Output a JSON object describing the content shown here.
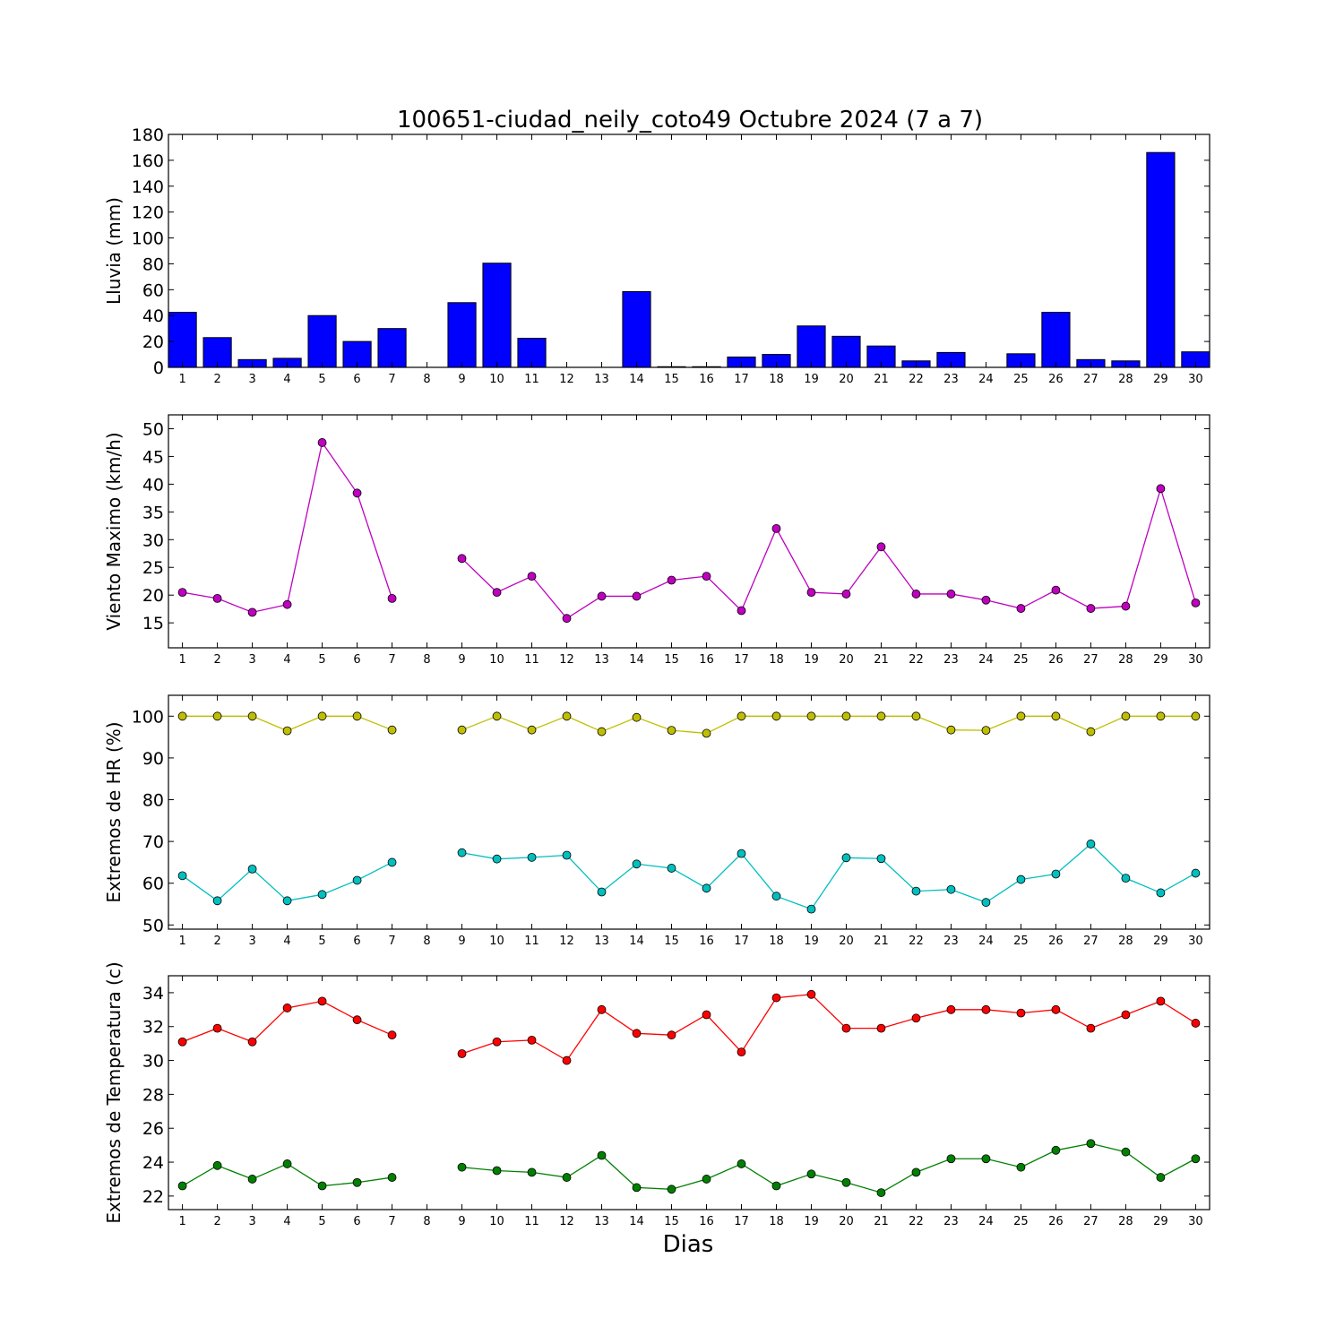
{
  "title": "100651-ciudad_neily_coto49 Octubre 2024  (7 a 7)",
  "xlabel": "Dias",
  "chart_data": [
    {
      "type": "bar",
      "ylabel": "Lluvia (mm)",
      "ylim": [
        0,
        180
      ],
      "yticks": [
        0,
        20,
        40,
        60,
        80,
        100,
        120,
        140,
        160,
        180
      ],
      "x": [
        1,
        2,
        3,
        4,
        5,
        6,
        7,
        8,
        9,
        10,
        11,
        12,
        13,
        14,
        15,
        16,
        17,
        18,
        19,
        20,
        21,
        22,
        23,
        24,
        25,
        26,
        27,
        28,
        29,
        30
      ],
      "series": [
        {
          "color": "#0000ff",
          "values": [
            42.5,
            23,
            6,
            7,
            40,
            20,
            30,
            0,
            50,
            80.5,
            22.5,
            0,
            0,
            58.5,
            0.5,
            0.5,
            8,
            10,
            32,
            24,
            16.5,
            5,
            11.5,
            0,
            10.5,
            42.5,
            6,
            5,
            166,
            12
          ]
        }
      ]
    },
    {
      "type": "line",
      "ylabel": "Viento Maximo (km/h)",
      "ylim": [
        10.5,
        52.5
      ],
      "yticks": [
        15,
        20,
        25,
        30,
        35,
        40,
        45,
        50
      ],
      "x": [
        1,
        2,
        3,
        4,
        5,
        6,
        7,
        8,
        9,
        10,
        11,
        12,
        13,
        14,
        15,
        16,
        17,
        18,
        19,
        20,
        21,
        22,
        23,
        24,
        25,
        26,
        27,
        28,
        29,
        30
      ],
      "series": [
        {
          "color": "#bf00bf",
          "values": [
            20.5,
            19.4,
            16.9,
            18.3,
            47.5,
            38.4,
            19.4,
            null,
            26.6,
            20.5,
            23.4,
            15.8,
            19.8,
            19.8,
            22.7,
            23.4,
            17.2,
            32.0,
            20.5,
            20.2,
            28.7,
            20.2,
            20.2,
            19.1,
            17.6,
            20.9,
            17.6,
            18.0,
            39.2,
            18.6
          ]
        }
      ]
    },
    {
      "type": "line",
      "ylabel": "Extremos de HR (%)",
      "ylim": [
        49,
        105
      ],
      "yticks": [
        50,
        60,
        70,
        80,
        90,
        100
      ],
      "x": [
        1,
        2,
        3,
        4,
        5,
        6,
        7,
        8,
        9,
        10,
        11,
        12,
        13,
        14,
        15,
        16,
        17,
        18,
        19,
        20,
        21,
        22,
        23,
        24,
        25,
        26,
        27,
        28,
        29,
        30
      ],
      "series": [
        {
          "color": "#bfbf00",
          "values": [
            100,
            100,
            100,
            96.5,
            100,
            100,
            96.7,
            null,
            96.7,
            100,
            96.7,
            100,
            96.3,
            99.7,
            96.6,
            95.9,
            100,
            100,
            100,
            100,
            100,
            100,
            96.7,
            96.6,
            100,
            100,
            96.3,
            100,
            100,
            100
          ]
        },
        {
          "color": "#00bfbf",
          "values": [
            61.8,
            55.8,
            63.4,
            55.8,
            57.3,
            60.7,
            65.0,
            null,
            67.3,
            65.8,
            66.2,
            66.7,
            57.9,
            64.6,
            63.6,
            58.8,
            67.1,
            56.9,
            53.8,
            66.1,
            65.9,
            58.1,
            58.5,
            55.4,
            60.9,
            62.2,
            69.4,
            61.2,
            57.7,
            62.4
          ]
        }
      ]
    },
    {
      "type": "line",
      "ylabel": "Extremos de Temperatura (c)",
      "ylim": [
        21.2,
        35
      ],
      "yticks": [
        22,
        24,
        26,
        28,
        30,
        32,
        34
      ],
      "x": [
        1,
        2,
        3,
        4,
        5,
        6,
        7,
        8,
        9,
        10,
        11,
        12,
        13,
        14,
        15,
        16,
        17,
        18,
        19,
        20,
        21,
        22,
        23,
        24,
        25,
        26,
        27,
        28,
        29,
        30
      ],
      "series": [
        {
          "color": "#ff0000",
          "values": [
            31.1,
            31.9,
            31.1,
            33.1,
            33.5,
            32.4,
            31.5,
            null,
            30.4,
            31.1,
            31.2,
            30.0,
            33.0,
            31.6,
            31.5,
            32.7,
            30.5,
            33.7,
            33.9,
            31.9,
            31.9,
            32.5,
            33.0,
            33.0,
            32.8,
            33.0,
            31.9,
            32.7,
            33.5,
            32.2
          ]
        },
        {
          "color": "#008000",
          "values": [
            22.6,
            23.8,
            23.0,
            23.9,
            22.6,
            22.8,
            23.1,
            null,
            23.7,
            23.5,
            23.4,
            23.1,
            24.4,
            22.5,
            22.4,
            23.0,
            23.9,
            22.6,
            23.3,
            22.8,
            22.2,
            23.4,
            24.2,
            24.2,
            23.7,
            24.7,
            25.1,
            24.6,
            23.1,
            24.2
          ]
        }
      ]
    }
  ]
}
